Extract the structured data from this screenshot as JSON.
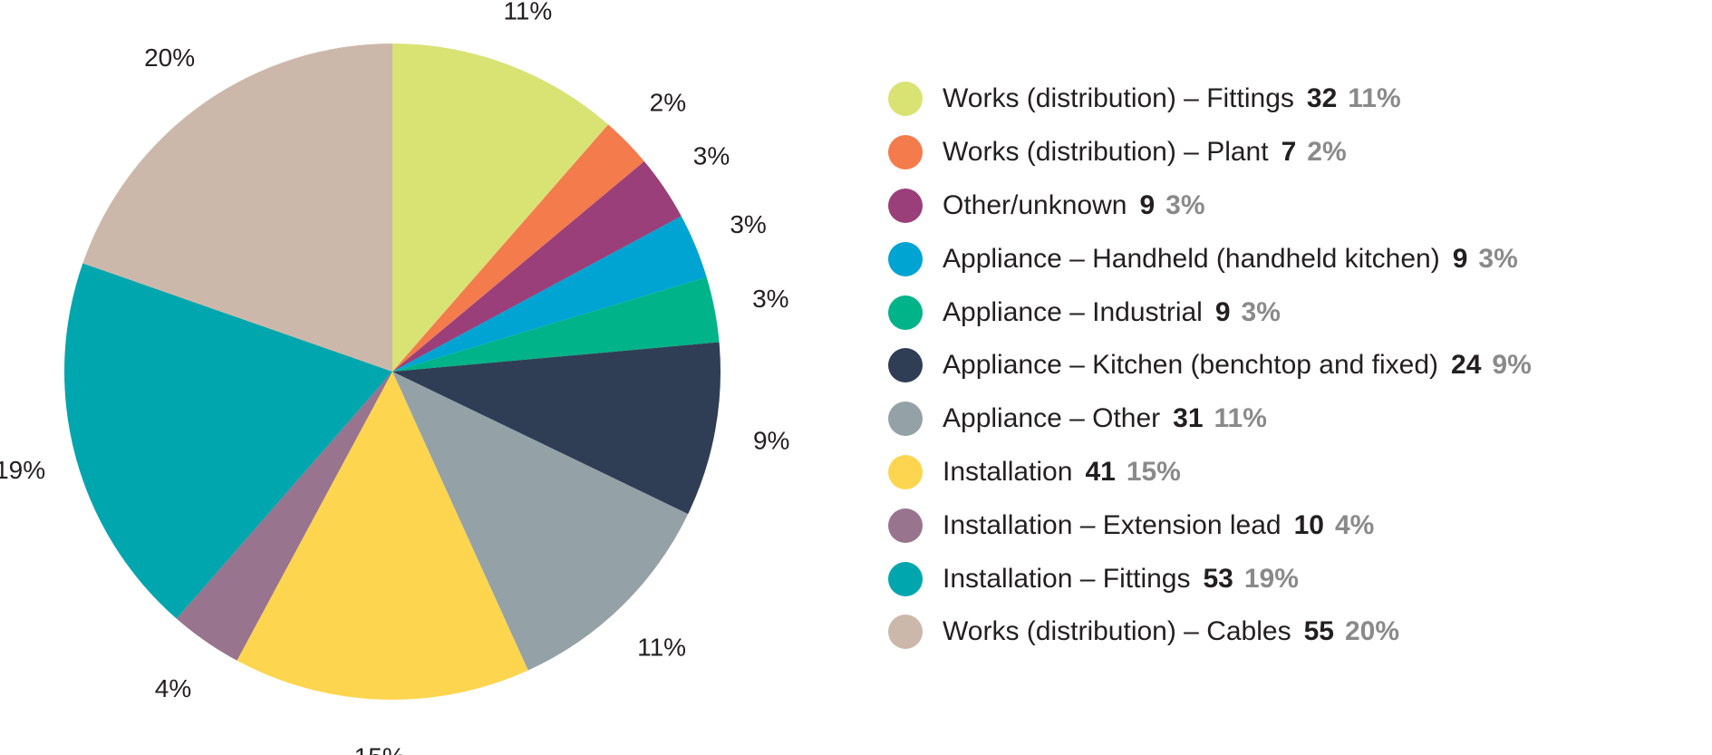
{
  "chart_data": {
    "type": "pie",
    "slices": [
      {
        "label": "Works (distribution) – Fittings",
        "count": "32",
        "pct_label": "11%",
        "value": 32,
        "color": "#d8e374"
      },
      {
        "label": "Works (distribution) – Plant",
        "count": "7",
        "pct_label": "2%",
        "value": 7,
        "color": "#f37b4c"
      },
      {
        "label": "Other/unknown",
        "count": "9",
        "pct_label": "3%",
        "value": 9,
        "color": "#9a3f79"
      },
      {
        "label": "Appliance – Handheld (handheld kitchen)",
        "count": "9",
        "pct_label": "3%",
        "value": 9,
        "color": "#00a4d3"
      },
      {
        "label": "Appliance – Industrial",
        "count": "9",
        "pct_label": "3%",
        "value": 9,
        "color": "#00b388"
      },
      {
        "label": "Appliance – Kitchen (benchtop and fixed)",
        "count": "24",
        "pct_label": "9%",
        "value": 24,
        "color": "#2f3e55"
      },
      {
        "label": "Appliance – Other",
        "count": "31",
        "pct_label": "11%",
        "value": 31,
        "color": "#94a1a6"
      },
      {
        "label": "Installation",
        "count": "41",
        "pct_label": "15%",
        "value": 41,
        "color": "#fdd54f"
      },
      {
        "label": "Installation – Extension lead",
        "count": "10",
        "pct_label": "4%",
        "value": 10,
        "color": "#98748e"
      },
      {
        "label": "Installation – Fittings",
        "count": "53",
        "pct_label": "19%",
        "value": 53,
        "color": "#00a6ae"
      },
      {
        "label": "Works (distribution) – Cables",
        "count": "55",
        "pct_label": "20%",
        "value": 55,
        "color": "#ccb8aa"
      }
    ],
    "legend_position": "right"
  }
}
